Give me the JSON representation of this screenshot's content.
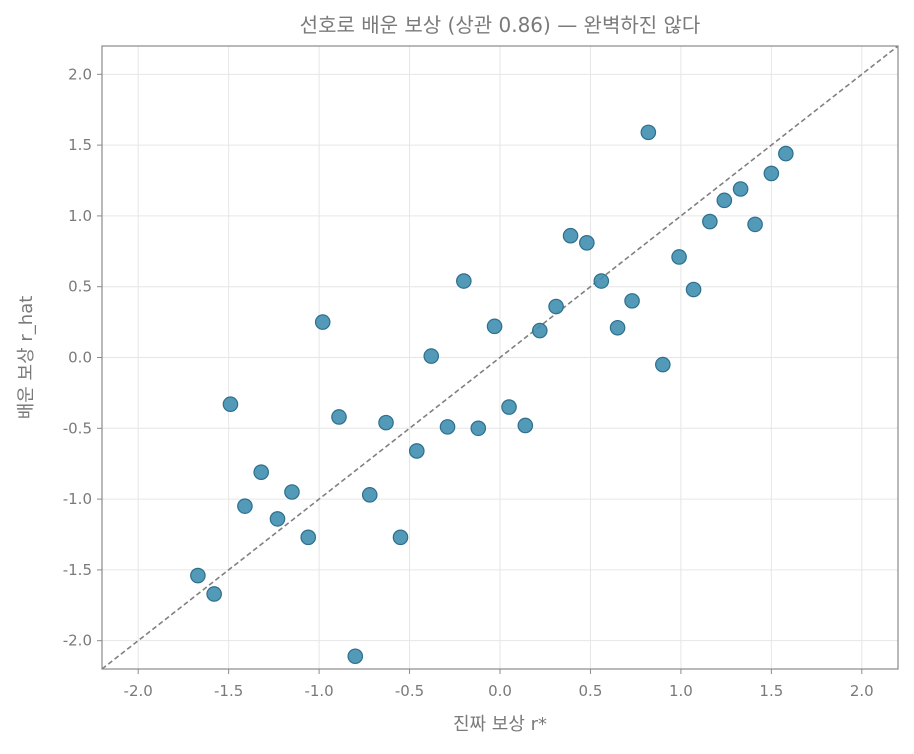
{
  "chart_data": {
    "type": "scatter",
    "title": "선호로 배운 보상 (상관 0.86) — 완벽하진 않다",
    "xlabel": "진짜 보상 r*",
    "ylabel": "배운 보상 r_hat",
    "xlim": [
      -2.2,
      2.2
    ],
    "ylim": [
      -2.2,
      2.2
    ],
    "xticks": [
      "-2.0",
      "-1.5",
      "-1.0",
      "-0.5",
      "0.0",
      "0.5",
      "1.0",
      "1.5",
      "2.0"
    ],
    "yticks": [
      "2.0",
      "1.5",
      "1.0",
      "0.5",
      "0.0",
      "-0.5",
      "-1.0",
      "-1.5",
      "-2.0"
    ],
    "grid": true,
    "reference_line": "y = x",
    "colors": {
      "point": "#3f8fb0",
      "reference": "#808080"
    },
    "points": [
      {
        "x": -1.67,
        "y": -1.54
      },
      {
        "x": -1.58,
        "y": -1.67
      },
      {
        "x": -1.49,
        "y": -0.33
      },
      {
        "x": -1.41,
        "y": -1.05
      },
      {
        "x": -1.32,
        "y": -0.81
      },
      {
        "x": -1.23,
        "y": -1.14
      },
      {
        "x": -1.15,
        "y": -0.95
      },
      {
        "x": -1.06,
        "y": -1.27
      },
      {
        "x": -0.98,
        "y": 0.25
      },
      {
        "x": -0.89,
        "y": -0.42
      },
      {
        "x": -0.8,
        "y": -2.11
      },
      {
        "x": -0.72,
        "y": -0.97
      },
      {
        "x": -0.63,
        "y": -0.46
      },
      {
        "x": -0.55,
        "y": -1.27
      },
      {
        "x": -0.46,
        "y": -0.66
      },
      {
        "x": -0.38,
        "y": 0.01
      },
      {
        "x": -0.29,
        "y": -0.49
      },
      {
        "x": -0.2,
        "y": 0.54
      },
      {
        "x": -0.12,
        "y": -0.5
      },
      {
        "x": -0.03,
        "y": 0.22
      },
      {
        "x": 0.05,
        "y": -0.35
      },
      {
        "x": 0.14,
        "y": -0.48
      },
      {
        "x": 0.22,
        "y": 0.19
      },
      {
        "x": 0.31,
        "y": 0.36
      },
      {
        "x": 0.39,
        "y": 0.86
      },
      {
        "x": 0.48,
        "y": 0.81
      },
      {
        "x": 0.56,
        "y": 0.54
      },
      {
        "x": 0.65,
        "y": 0.21
      },
      {
        "x": 0.73,
        "y": 0.4
      },
      {
        "x": 0.82,
        "y": 1.59
      },
      {
        "x": 0.9,
        "y": -0.05
      },
      {
        "x": 0.99,
        "y": 0.71
      },
      {
        "x": 1.07,
        "y": 0.48
      },
      {
        "x": 1.16,
        "y": 0.96
      },
      {
        "x": 1.24,
        "y": 1.11
      },
      {
        "x": 1.33,
        "y": 1.19
      },
      {
        "x": 1.41,
        "y": 0.94
      },
      {
        "x": 1.5,
        "y": 1.3
      },
      {
        "x": 1.58,
        "y": 1.44
      }
    ]
  }
}
